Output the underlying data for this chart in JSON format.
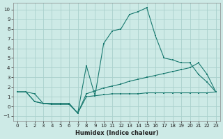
{
  "xlabel": "Humidex (Indice chaleur)",
  "background_color": "#cdeae6",
  "grid_color": "#aad0cc",
  "line_color": "#1a7a70",
  "xlim": [
    -0.5,
    23.5
  ],
  "ylim": [
    -1.5,
    10.7
  ],
  "xticks": [
    0,
    1,
    2,
    3,
    4,
    5,
    6,
    7,
    8,
    9,
    10,
    11,
    12,
    13,
    14,
    15,
    16,
    17,
    18,
    19,
    20,
    21,
    22,
    23
  ],
  "yticks": [
    -1,
    0,
    1,
    2,
    3,
    4,
    5,
    6,
    7,
    8,
    9,
    10
  ],
  "line1_x": [
    0,
    1,
    2,
    3,
    4,
    5,
    6,
    7,
    8,
    9,
    10,
    11,
    12,
    13,
    14,
    15,
    16,
    17,
    18,
    19,
    20,
    21,
    22,
    23
  ],
  "line1_y": [
    1.5,
    1.5,
    0.5,
    0.3,
    0.3,
    0.3,
    0.3,
    -0.7,
    1.0,
    1.1,
    1.2,
    1.3,
    1.3,
    1.3,
    1.3,
    1.4,
    1.4,
    1.4,
    1.4,
    1.4,
    1.4,
    1.4,
    1.4,
    1.5
  ],
  "line2_x": [
    0,
    1,
    2,
    3,
    4,
    5,
    6,
    7,
    8,
    9,
    10,
    11,
    12,
    13,
    14,
    15,
    16,
    17,
    18,
    19,
    20,
    21,
    22,
    23
  ],
  "line2_y": [
    1.5,
    1.5,
    0.5,
    0.3,
    0.3,
    0.3,
    0.3,
    -0.7,
    1.3,
    1.6,
    1.9,
    2.1,
    2.3,
    2.6,
    2.8,
    3.0,
    3.2,
    3.4,
    3.6,
    3.8,
    4.0,
    4.5,
    3.3,
    1.5
  ],
  "line3_x": [
    0,
    1,
    2,
    3,
    4,
    5,
    6,
    7,
    8,
    9,
    10,
    11,
    12,
    13,
    14,
    15,
    16,
    17,
    18,
    19,
    20,
    21,
    22,
    23
  ],
  "line3_y": [
    1.5,
    1.5,
    1.3,
    0.3,
    0.2,
    0.2,
    0.2,
    -0.7,
    4.2,
    1.1,
    6.5,
    7.8,
    8.0,
    9.5,
    9.8,
    10.2,
    7.3,
    5.0,
    4.8,
    4.5,
    4.5,
    3.3,
    2.5,
    1.5
  ]
}
